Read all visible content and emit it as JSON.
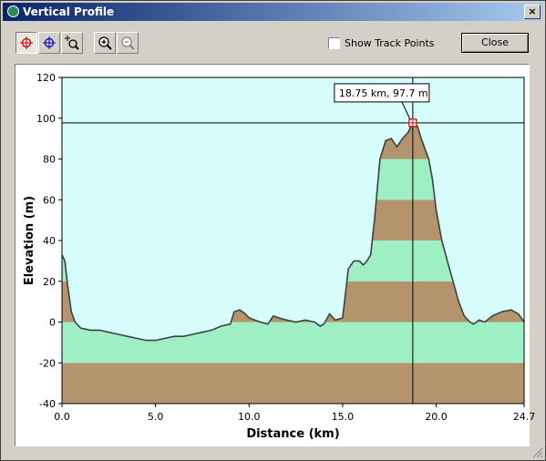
{
  "window": {
    "title": "Vertical Profile",
    "close_glyph": "×"
  },
  "toolbar": {
    "buttons": [
      {
        "icon": "red-crosshair-icon"
      },
      {
        "icon": "blue-crosshair-icon"
      },
      {
        "icon": "zoom-box-icon"
      },
      {
        "icon": "zoom-in-icon"
      },
      {
        "icon": "zoom-out-icon"
      }
    ],
    "show_track_points": {
      "label": "Show Track Points",
      "checked": false
    },
    "close_label": "Close"
  },
  "colors": {
    "band_brown": "#b3946c",
    "band_green": "#9ef0c4",
    "sky": "#d6fcfc",
    "profile_line": "#404040"
  },
  "chart_data": {
    "type": "area",
    "title": "",
    "xlabel": "Distance   (km)",
    "ylabel": "Elevation  (m)",
    "xlim": [
      0,
      24.7
    ],
    "ylim": [
      -40,
      120
    ],
    "x_ticks": [
      "0.0",
      "5.0",
      "10.0",
      "15.0",
      "20.0",
      "24.7"
    ],
    "y_ticks": [
      "120",
      "100",
      "80",
      "60",
      "40",
      "20",
      "0",
      "-20",
      "-40"
    ],
    "elevation_bands": [
      {
        "from": -40,
        "to": -20,
        "color": "brown"
      },
      {
        "from": -20,
        "to": 0,
        "color": "green"
      },
      {
        "from": 0,
        "to": 20,
        "color": "brown"
      },
      {
        "from": 20,
        "to": 40,
        "color": "green"
      },
      {
        "from": 40,
        "to": 60,
        "color": "brown"
      },
      {
        "from": 60,
        "to": 80,
        "color": "green"
      },
      {
        "from": 80,
        "to": 100,
        "color": "brown"
      }
    ],
    "profile": {
      "x": [
        0.0,
        0.15,
        0.3,
        0.5,
        0.7,
        1.0,
        1.5,
        2.0,
        2.5,
        3.0,
        3.5,
        4.0,
        4.5,
        5.0,
        5.5,
        6.0,
        6.5,
        7.0,
        7.5,
        8.0,
        8.5,
        9.0,
        9.2,
        9.5,
        9.8,
        10.0,
        10.3,
        10.6,
        11.0,
        11.3,
        11.6,
        12.0,
        12.5,
        13.0,
        13.5,
        13.8,
        14.0,
        14.3,
        14.6,
        15.0,
        15.3,
        15.6,
        15.9,
        16.1,
        16.3,
        16.5,
        16.7,
        17.0,
        17.3,
        17.6,
        17.9,
        18.2,
        18.5,
        18.75,
        19.0,
        19.2,
        19.4,
        19.6,
        19.8,
        20.0,
        20.3,
        20.6,
        20.9,
        21.2,
        21.5,
        21.8,
        22.0,
        22.3,
        22.6,
        23.0,
        23.5,
        24.0,
        24.4,
        24.7
      ],
      "y": [
        33,
        30,
        18,
        5,
        0,
        -3,
        -4,
        -4,
        -5,
        -6,
        -7,
        -8,
        -9,
        -9,
        -8,
        -7,
        -7,
        -6,
        -5,
        -4,
        -2,
        -1,
        5,
        6,
        4,
        2,
        1,
        0,
        -1,
        3,
        2,
        1,
        0,
        1,
        0,
        -2,
        -1,
        4,
        1,
        2,
        26,
        30,
        30,
        28,
        30,
        33,
        50,
        80,
        89,
        90,
        86,
        90,
        93,
        97.7,
        96,
        90,
        85,
        80,
        70,
        55,
        40,
        30,
        20,
        10,
        3,
        0,
        -1,
        1,
        0,
        3,
        5,
        6,
        4,
        0
      ]
    },
    "cursor": {
      "x": 18.75,
      "y": 97.7,
      "label": "18.75 km, 97.7 m"
    }
  }
}
